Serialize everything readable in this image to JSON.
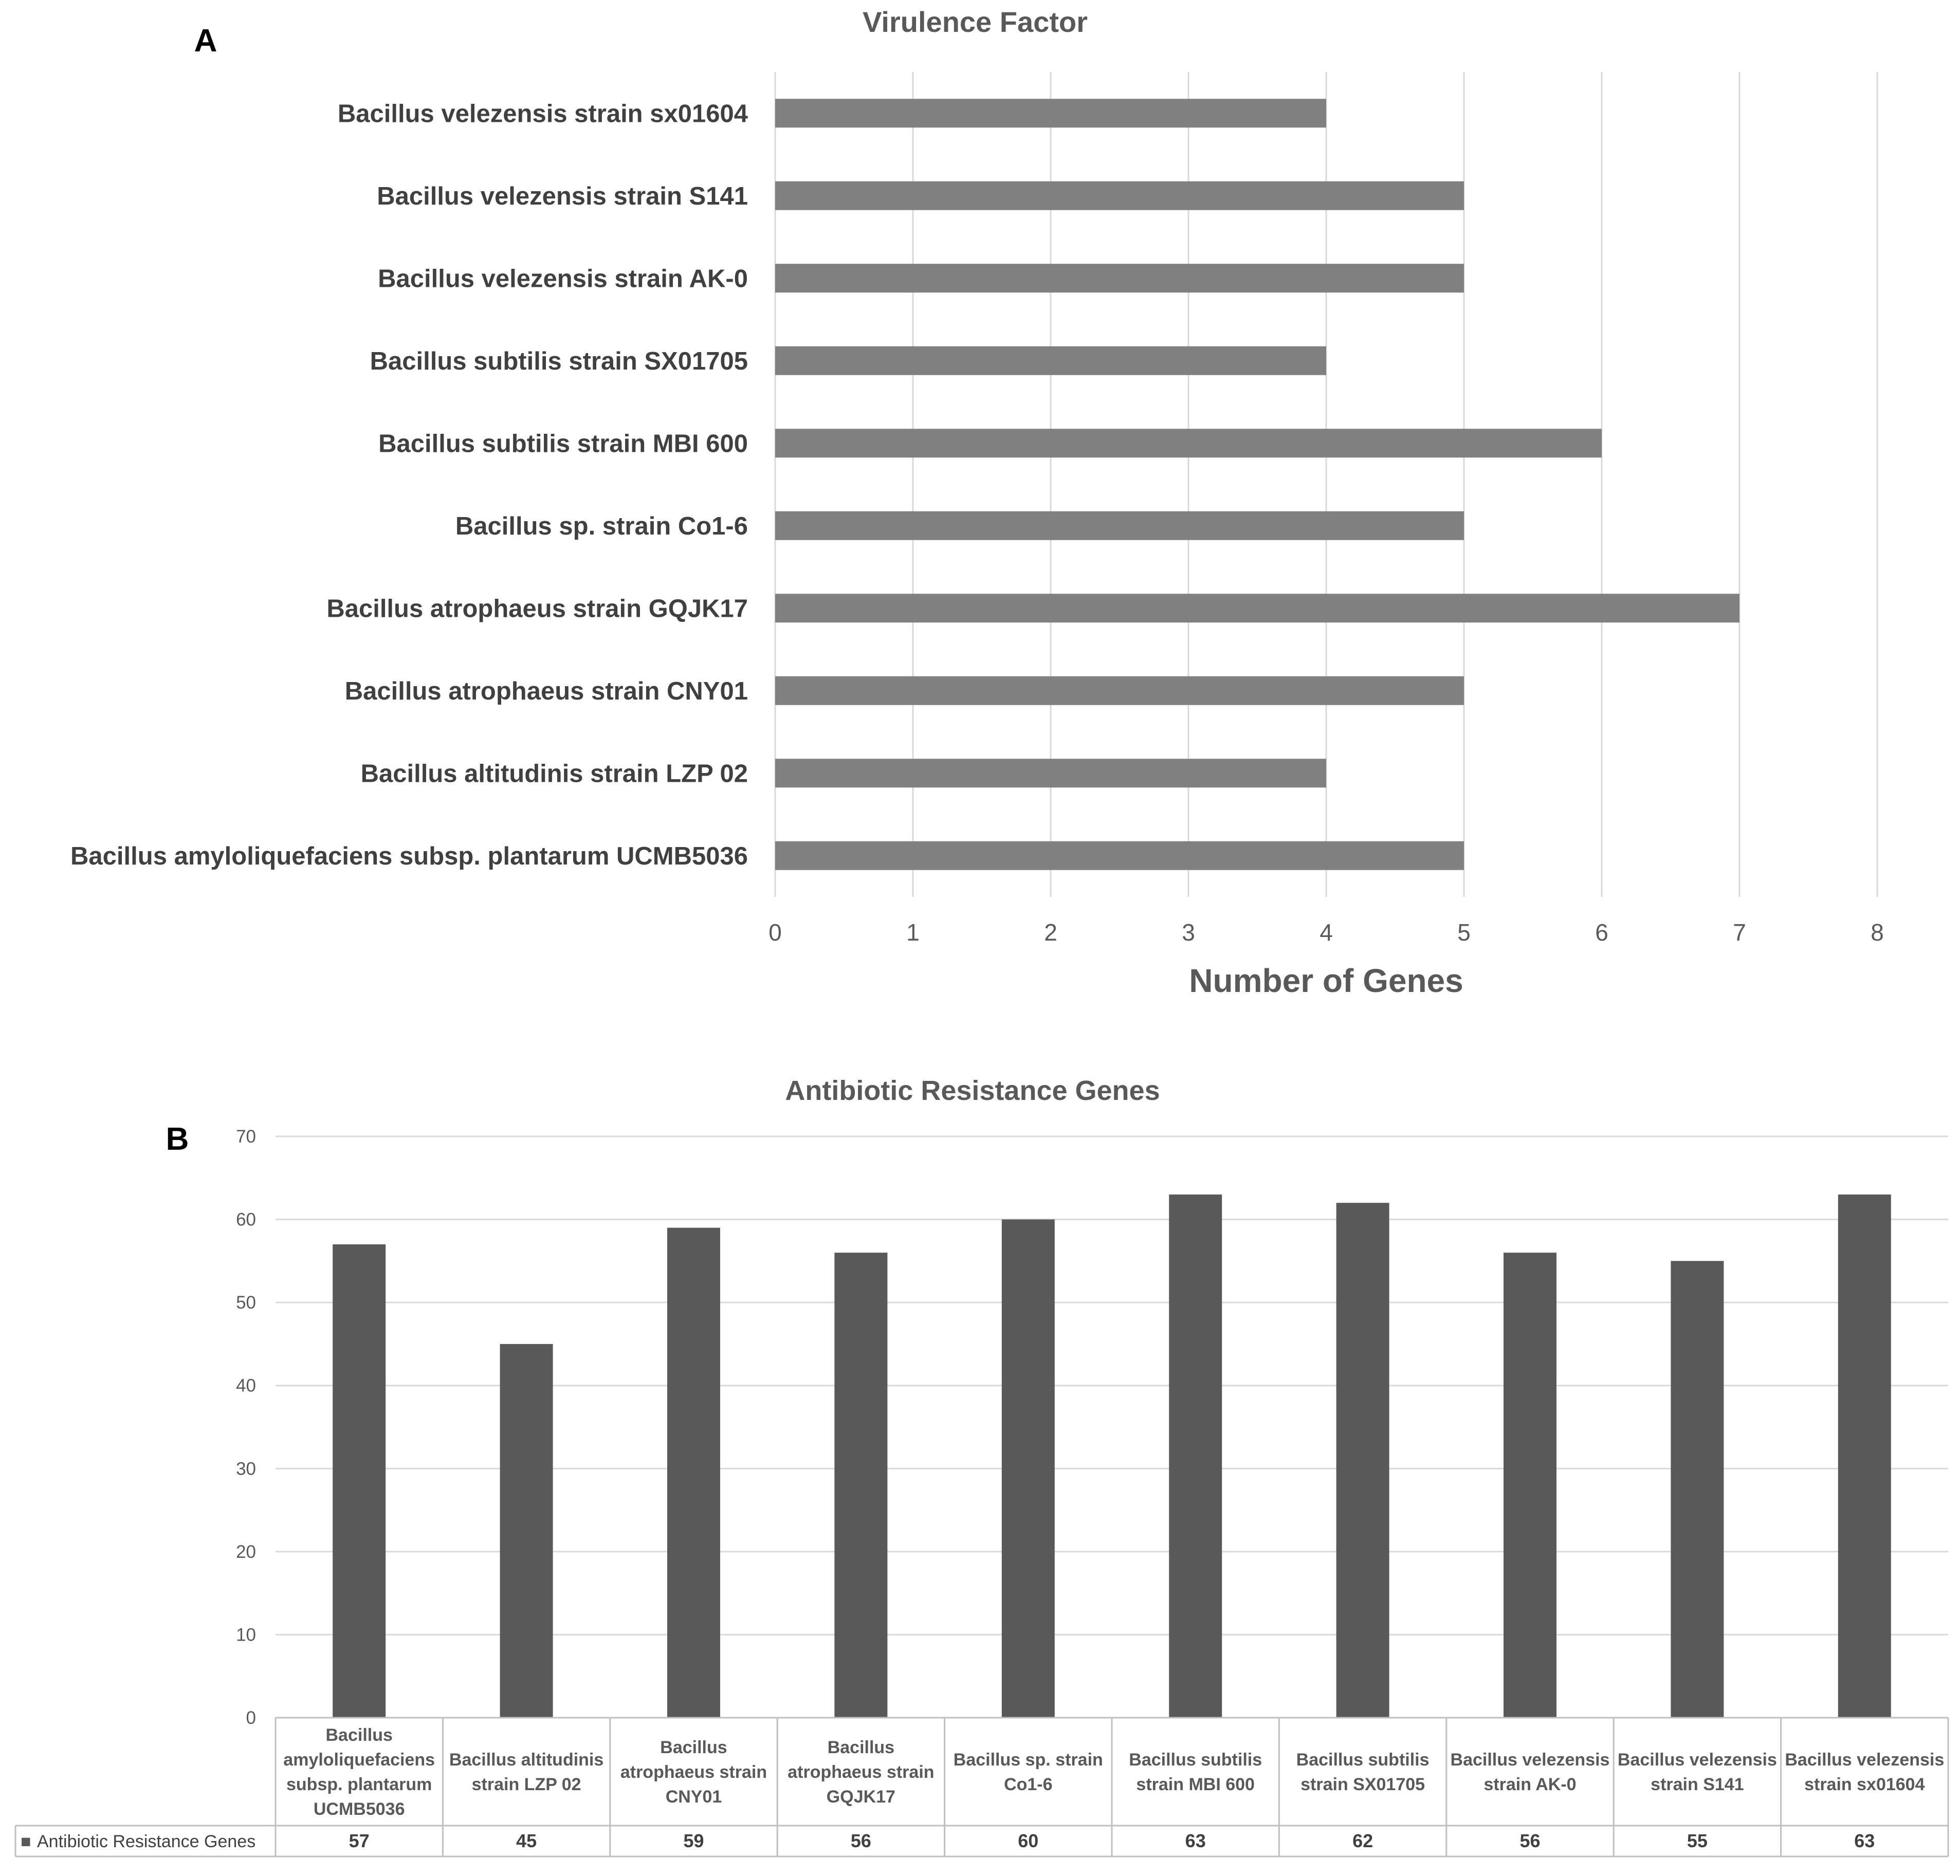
{
  "chart_data": [
    {
      "panel_label": "A",
      "type": "bar",
      "orientation": "horizontal",
      "title": "Virulence Factor",
      "xlabel": "Number of Genes",
      "ylabel": "",
      "xlim": [
        0,
        8
      ],
      "ticks": [
        "0",
        "1",
        "2",
        "3",
        "4",
        "5",
        "6",
        "7",
        "8"
      ],
      "grid": true,
      "color": "#808080",
      "categories": [
        "Bacillus velezensis strain sx01604",
        "Bacillus velezensis strain S141",
        "Bacillus velezensis strain AK-0",
        "Bacillus subtilis strain SX01705",
        "Bacillus subtilis strain MBI 600",
        "Bacillus sp. strain Co1-6",
        "Bacillus atrophaeus strain GQJK17",
        "Bacillus atrophaeus strain CNY01",
        "Bacillus altitudinis strain LZP 02",
        "Bacillus amyloliquefaciens subsp. plantarum UCMB5036"
      ],
      "values": [
        4,
        5,
        5,
        4,
        6,
        5,
        7,
        5,
        4,
        5
      ]
    },
    {
      "panel_label": "B",
      "type": "bar",
      "orientation": "vertical",
      "title": "Antibiotic Resistance Genes",
      "xlabel": "",
      "ylabel": "",
      "ylim": [
        0,
        70
      ],
      "ticks": [
        "0",
        "10",
        "20",
        "30",
        "40",
        "50",
        "60",
        "70"
      ],
      "grid": true,
      "color": "#595959",
      "categories": [
        [
          "Bacillus",
          "amyloliquefaciens",
          "subsp. plantarum",
          "UCMB5036"
        ],
        [
          "Bacillus altitudinis",
          "strain LZP 02"
        ],
        [
          "Bacillus",
          "atrophaeus strain",
          "CNY01"
        ],
        [
          "Bacillus",
          "atrophaeus strain",
          "GQJK17"
        ],
        [
          "Bacillus sp. strain",
          "Co1-6"
        ],
        [
          "Bacillus subtilis",
          "strain MBI 600"
        ],
        [
          "Bacillus subtilis",
          "strain SX01705"
        ],
        [
          "Bacillus velezensis",
          "strain AK-0"
        ],
        [
          "Bacillus velezensis",
          "strain S141"
        ],
        [
          "Bacillus velezensis",
          "strain sx01604"
        ]
      ],
      "series": [
        {
          "name": "Antibiotic Resistance Genes",
          "legend_symbol": "■",
          "values": [
            57,
            45,
            59,
            56,
            60,
            63,
            62,
            56,
            55,
            63
          ],
          "table_values": [
            "57",
            "45",
            "59",
            "56",
            "60",
            "63",
            "62",
            "56",
            "55",
            "63"
          ]
        }
      ]
    }
  ]
}
